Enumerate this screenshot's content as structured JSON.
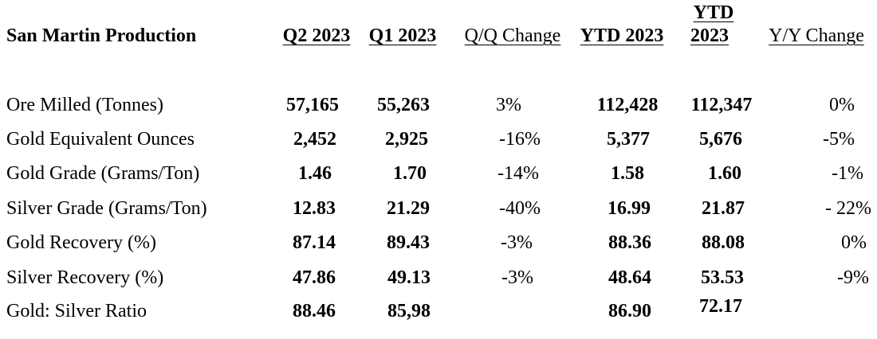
{
  "table": {
    "title": "San Martin Production",
    "headers": {
      "q2_2023": "Q2 2023",
      "q1_2023": "Q1 2023",
      "qq_change": "Q/Q Change",
      "ytd_2023_a": "YTD 2023",
      "ytd_2023_b_line1": "YTD",
      "ytd_2023_b_line2": "2023",
      "yy_change": "Y/Y Change"
    },
    "rows": [
      {
        "label": "Ore Milled (Tonnes)",
        "q2": "57,165",
        "q1": "55,263",
        "qq": "3%",
        "ytd_a": "112,428",
        "ytd_b": "112,347",
        "yy": "0%"
      },
      {
        "label": "Gold Equivalent Ounces",
        "q2": "2,452",
        "q1": "2,925",
        "qq": "-16%",
        "ytd_a": "5,377",
        "ytd_b": "5,676",
        "yy": "-5%"
      },
      {
        "label": "Gold Grade (Grams/Ton)",
        "q2": "1.46",
        "q1": "1.70",
        "qq": "-14%",
        "ytd_a": "1.58",
        "ytd_b": "1.60",
        "yy": "-1%"
      },
      {
        "label": "Silver Grade (Grams/Ton)",
        "q2": "12.83",
        "q1": "21.29",
        "qq": "-40%",
        "ytd_a": "16.99",
        "ytd_b": "21.87",
        "yy": "- 22%"
      },
      {
        "label": "Gold Recovery (%)",
        "q2": "87.14",
        "q1": "89.43",
        "qq": "-3%",
        "ytd_a": "88.36",
        "ytd_b": "88.08",
        "yy": "0%"
      },
      {
        "label": "Silver Recovery (%)",
        "q2": "47.86",
        "q1": "49.13",
        "qq": "-3%",
        "ytd_a": "48.64",
        "ytd_b": "53.53",
        "yy": "-9%"
      },
      {
        "label": "Gold: Silver Ratio",
        "q2": "88.46",
        "q1": "85,98",
        "qq": "",
        "ytd_a": "86.90",
        "ytd_b": "72.17",
        "yy": ""
      }
    ]
  }
}
